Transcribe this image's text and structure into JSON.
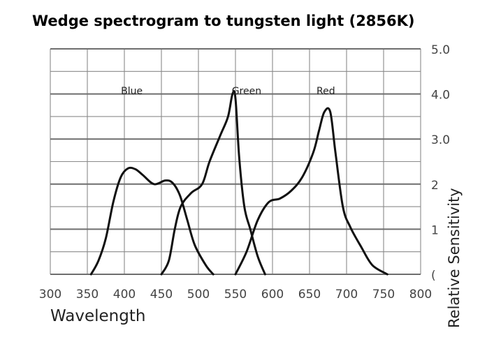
{
  "chart_data": {
    "type": "line",
    "title": "Wedge spectrogram to tungsten light (2856K)",
    "xlabel": "Wavelength",
    "ylabel": "Relative Sensitivity",
    "xlim": [
      300,
      800
    ],
    "ylim": [
      0,
      5
    ],
    "x_ticks": [
      "300",
      "350",
      "400",
      "450",
      "500",
      "550",
      "600",
      "650",
      "700",
      "750",
      "800"
    ],
    "y_ticks": [
      "5.0",
      "4.0",
      "3.0",
      "2",
      "1",
      "("
    ],
    "grid": true,
    "series": [
      {
        "name": "Blue",
        "points": [
          [
            355,
            0.0
          ],
          [
            365,
            0.3
          ],
          [
            375,
            0.8
          ],
          [
            385,
            1.6
          ],
          [
            395,
            2.15
          ],
          [
            405,
            2.35
          ],
          [
            415,
            2.33
          ],
          [
            425,
            2.2
          ],
          [
            440,
            2.0
          ],
          [
            455,
            2.08
          ],
          [
            465,
            2.03
          ],
          [
            475,
            1.75
          ],
          [
            485,
            1.2
          ],
          [
            495,
            0.65
          ],
          [
            510,
            0.2
          ],
          [
            520,
            0.0
          ]
        ]
      },
      {
        "name": "Green",
        "points": [
          [
            450,
            0.0
          ],
          [
            460,
            0.3
          ],
          [
            468,
            1.0
          ],
          [
            476,
            1.5
          ],
          [
            490,
            1.8
          ],
          [
            505,
            2.0
          ],
          [
            515,
            2.5
          ],
          [
            530,
            3.1
          ],
          [
            540,
            3.5
          ],
          [
            546,
            4.0
          ],
          [
            550,
            3.9
          ],
          [
            555,
            2.6
          ],
          [
            562,
            1.5
          ],
          [
            570,
            1.0
          ],
          [
            580,
            0.4
          ],
          [
            590,
            0.0
          ]
        ]
      },
      {
        "name": "Red",
        "points": [
          [
            550,
            0.0
          ],
          [
            565,
            0.5
          ],
          [
            580,
            1.2
          ],
          [
            595,
            1.6
          ],
          [
            610,
            1.68
          ],
          [
            625,
            1.85
          ],
          [
            640,
            2.15
          ],
          [
            655,
            2.7
          ],
          [
            663,
            3.2
          ],
          [
            670,
            3.6
          ],
          [
            678,
            3.6
          ],
          [
            685,
            2.7
          ],
          [
            695,
            1.5
          ],
          [
            705,
            1.05
          ],
          [
            720,
            0.6
          ],
          [
            735,
            0.2
          ],
          [
            755,
            0.0
          ]
        ]
      }
    ]
  }
}
